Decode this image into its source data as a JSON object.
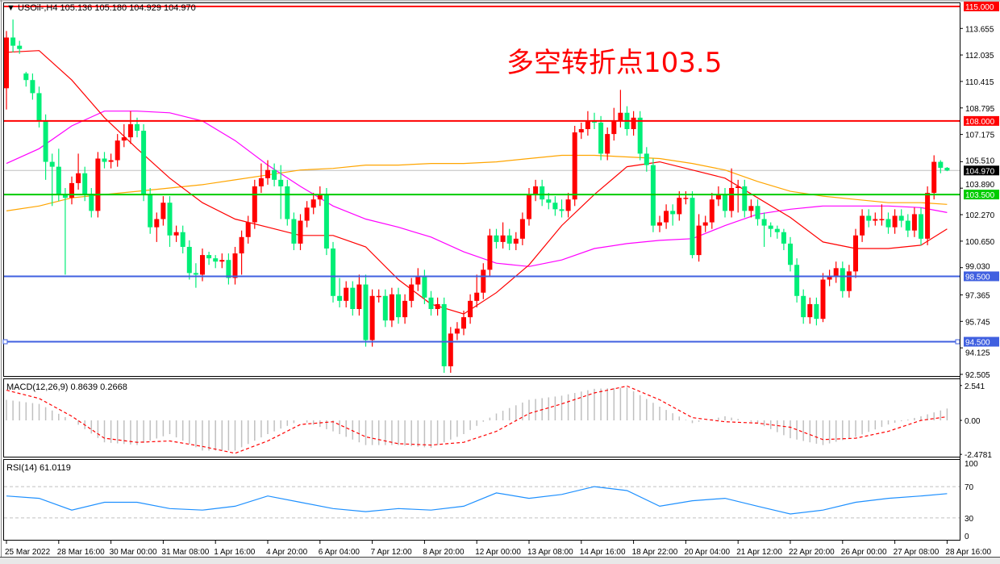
{
  "header": {
    "symbol": "USOil-,H4",
    "open": "105.136",
    "high": "105.180",
    "low": "104.929",
    "close": "104.970"
  },
  "annotation": "多空转折点103.5",
  "colors": {
    "up": "#ff0000",
    "down": "#00ee77",
    "ma_fast": "#ff0000",
    "ma_mid": "#ff00ff",
    "ma_slow": "#ffa500",
    "macd_signal": "#ff0000",
    "macd_hist": "#c0c0c0",
    "rsi": "#1e90ff"
  },
  "levels": [
    {
      "label": "115.000",
      "value": 115.0,
      "color": "#ff0000"
    },
    {
      "label": "108.000",
      "value": 108.0,
      "color": "#ff0000"
    },
    {
      "label": "103.500",
      "value": 103.5,
      "color": "#00cc00"
    },
    {
      "label": "98.500",
      "value": 98.5,
      "color": "#4060e0"
    },
    {
      "label": "94.500",
      "value": 94.5,
      "color": "#4060e0"
    }
  ],
  "current_price": {
    "label": "104.970",
    "value": 104.97
  },
  "chart_data": [
    {
      "type": "candlestick",
      "title": "USOil-,H4",
      "ylim": [
        92.505,
        115.0
      ],
      "y_ticks": [
        "113.655",
        "112.035",
        "110.415",
        "108.795",
        "107.175",
        "105.510",
        "103.890",
        "102.270",
        "100.650",
        "99.030",
        "97.365",
        "95.745",
        "94.125",
        "92.505"
      ],
      "x_tick_labels": [
        "25 Mar 2022",
        "28 Mar 16:00",
        "30 Mar 00:00",
        "31 Mar 08:00",
        "1 Apr 16:00",
        "4 Apr 20:00",
        "6 Apr 04:00",
        "7 Apr 12:00",
        "8 Apr 20:00",
        "12 Apr 00:00",
        "13 Apr 08:00",
        "14 Apr 16:00",
        "18 Apr 22:00",
        "20 Apr 04:00",
        "21 Apr 12:00",
        "22 Apr 20:00",
        "26 Apr 00:00",
        "27 Apr 08:00",
        "28 Apr 16:00"
      ],
      "bars_per_x_tick": 8,
      "open": [
        110.0,
        113.1,
        112.6,
        110.9,
        110.5,
        109.7,
        108.0,
        105.5,
        105.2,
        103.5,
        103.3,
        104.2,
        104.8,
        103.5,
        102.5,
        105.7,
        105.5,
        105.6,
        106.8,
        107.0,
        107.8,
        107.4,
        103.5,
        101.5,
        102.0,
        103.0,
        101.0,
        101.2,
        100.3,
        98.7,
        98.6,
        99.8,
        99.6,
        99.4,
        99.5,
        98.4,
        99.9,
        100.9,
        101.8,
        104.0,
        104.5,
        105.0,
        104.4,
        104.0,
        102.0,
        100.5,
        101.9,
        102.7,
        103.2,
        103.5,
        100.2,
        97.3,
        97.0,
        97.8,
        96.5,
        98.0,
        94.6,
        97.3,
        97.3,
        95.8,
        97.4,
        96.0,
        97.0,
        98.0,
        98.5,
        97.2,
        96.5,
        96.8,
        93.0,
        95.0,
        95.3,
        96.0,
        97.0,
        97.5,
        98.9,
        101.0,
        100.6,
        101.0,
        100.5,
        100.8,
        102.0,
        103.5,
        104.0,
        103.2,
        103.0,
        102.6,
        102.5,
        103.2,
        107.3,
        107.5,
        108.0,
        107.9,
        106.0,
        107.2,
        108.0,
        108.5,
        107.5,
        108.2,
        106.0,
        105.3,
        101.6,
        101.8,
        102.5,
        102.3,
        103.3,
        103.3,
        99.8,
        101.6,
        101.8,
        103.2,
        103.5,
        102.5,
        103.9,
        104.0,
        102.5,
        102.8,
        102.0,
        101.6,
        101.4,
        101.2,
        100.5,
        99.2,
        97.3,
        96.0,
        96.8,
        95.9,
        98.3,
        98.5,
        99.0,
        97.6,
        98.8,
        101.0,
        102.2,
        101.9,
        102.0,
        102.0,
        101.5,
        102.2,
        101.9,
        101.3,
        102.3,
        100.8,
        103.6,
        105.5,
        105.136
      ],
      "high": [
        113.5,
        114.2,
        112.9,
        111.0,
        110.9,
        110.1,
        108.4,
        106.0,
        106.3,
        103.9,
        104.6,
        106.0,
        105.2,
        103.9,
        106.1,
        106.1,
        106.0,
        107.2,
        107.8,
        108.6,
        108.2,
        107.8,
        103.9,
        102.4,
        103.4,
        103.4,
        101.6,
        101.6,
        100.7,
        99.3,
        100.2,
        100.0,
        99.8,
        99.9,
        99.9,
        100.3,
        101.3,
        102.2,
        104.4,
        105.4,
        105.6,
        105.4,
        105.3,
        104.4,
        102.4,
        102.3,
        103.1,
        103.6,
        104.0,
        103.9,
        100.6,
        98.4,
        98.2,
        98.2,
        98.6,
        98.6,
        97.7,
        97.7,
        97.7,
        97.8,
        97.8,
        97.4,
        98.4,
        99.0,
        98.9,
        97.6,
        97.2,
        97.2,
        95.4,
        95.7,
        96.4,
        97.4,
        98.6,
        99.3,
        101.4,
        101.4,
        101.8,
        101.4,
        101.2,
        102.4,
        103.9,
        104.4,
        104.4,
        103.6,
        103.4,
        103.2,
        103.6,
        107.7,
        107.9,
        108.6,
        108.5,
        108.3,
        107.6,
        108.8,
        109.9,
        108.9,
        108.6,
        108.6,
        106.4,
        105.7,
        102.2,
        102.9,
        102.9,
        103.7,
        103.7,
        103.7,
        102.3,
        102.2,
        103.6,
        104.0,
        103.9,
        105.1,
        104.4,
        104.4,
        103.2,
        103.2,
        102.4,
        101.8,
        101.6,
        101.4,
        100.9,
        99.6,
        97.7,
        97.2,
        97.2,
        98.7,
        98.9,
        99.4,
        99.4,
        99.2,
        101.4,
        102.6,
        102.6,
        102.4,
        102.9,
        102.4,
        102.6,
        102.6,
        102.3,
        102.7,
        102.7,
        104.0,
        105.9,
        105.6,
        105.18
      ],
      "low": [
        108.7,
        112.2,
        112.1,
        110.1,
        109.3,
        107.6,
        104.4,
        102.8,
        103.1,
        98.6,
        102.9,
        103.8,
        103.1,
        102.1,
        102.1,
        105.1,
        105.1,
        105.2,
        106.4,
        106.6,
        107.0,
        103.1,
        101.1,
        100.6,
        101.6,
        100.3,
        100.6,
        99.9,
        98.3,
        97.8,
        98.2,
        99.2,
        99.0,
        99.0,
        98.0,
        98.0,
        98.6,
        100.5,
        101.4,
        103.6,
        104.1,
        104.0,
        102.0,
        101.6,
        100.1,
        100.1,
        101.5,
        102.3,
        102.8,
        99.8,
        96.9,
        96.6,
        96.6,
        96.1,
        96.1,
        94.2,
        94.2,
        96.9,
        95.4,
        95.4,
        95.6,
        95.6,
        96.6,
        97.6,
        96.8,
        96.1,
        96.1,
        92.6,
        92.6,
        94.6,
        94.9,
        95.6,
        96.6,
        97.1,
        98.5,
        100.2,
        100.2,
        100.1,
        100.1,
        100.4,
        101.6,
        103.1,
        102.8,
        102.6,
        102.2,
        102.1,
        102.1,
        102.8,
        106.9,
        107.1,
        107.5,
        105.6,
        105.6,
        106.8,
        107.6,
        107.1,
        107.1,
        105.6,
        104.9,
        101.2,
        101.2,
        101.4,
        101.6,
        101.9,
        102.9,
        99.6,
        99.4,
        101.2,
        101.4,
        102.8,
        102.1,
        102.1,
        102.4,
        102.1,
        102.1,
        101.6,
        100.3,
        100.9,
        100.8,
        100.1,
        98.8,
        96.9,
        95.6,
        95.6,
        95.5,
        95.7,
        97.9,
        98.1,
        97.2,
        97.2,
        98.4,
        100.6,
        101.5,
        101.6,
        101.6,
        101.1,
        101.1,
        101.5,
        100.9,
        100.9,
        100.4,
        100.4,
        103.2,
        104.8,
        104.929
      ],
      "close": [
        113.1,
        112.6,
        112.4,
        110.5,
        109.7,
        108.0,
        105.5,
        105.2,
        103.5,
        103.3,
        104.2,
        104.8,
        103.5,
        102.5,
        105.7,
        105.5,
        105.6,
        106.8,
        107.0,
        107.8,
        107.4,
        103.5,
        101.5,
        102.0,
        103.0,
        101.0,
        101.2,
        100.3,
        98.7,
        98.6,
        99.8,
        99.6,
        99.4,
        99.5,
        98.4,
        99.9,
        100.9,
        101.8,
        104.0,
        104.5,
        105.0,
        104.4,
        104.0,
        102.0,
        100.5,
        101.9,
        102.7,
        103.2,
        103.5,
        100.2,
        97.3,
        97.0,
        97.8,
        96.5,
        98.0,
        94.6,
        97.3,
        97.3,
        95.8,
        97.4,
        96.0,
        97.0,
        98.0,
        98.5,
        97.2,
        96.5,
        96.8,
        93.0,
        95.0,
        95.3,
        96.0,
        97.0,
        97.5,
        98.9,
        101.0,
        100.6,
        101.0,
        100.5,
        100.8,
        102.0,
        103.5,
        104.0,
        103.2,
        103.0,
        102.6,
        102.5,
        103.2,
        107.3,
        107.5,
        108.0,
        107.9,
        106.0,
        107.2,
        108.0,
        108.5,
        107.5,
        108.2,
        106.0,
        105.3,
        101.6,
        101.8,
        102.5,
        102.3,
        103.3,
        103.3,
        99.8,
        101.6,
        101.8,
        103.2,
        103.5,
        102.5,
        103.9,
        104.0,
        102.5,
        102.8,
        102.0,
        101.6,
        101.4,
        101.2,
        100.5,
        99.2,
        97.3,
        96.0,
        96.8,
        95.9,
        98.3,
        98.5,
        99.0,
        97.6,
        98.8,
        101.0,
        102.2,
        101.9,
        102.0,
        102.0,
        101.5,
        102.2,
        101.9,
        101.3,
        102.3,
        100.8,
        103.6,
        105.5,
        105.136,
        104.97
      ],
      "overlay_sample_bars": [
        0,
        5,
        10,
        15,
        20,
        25,
        30,
        35,
        40,
        45,
        50,
        55,
        60,
        65,
        70,
        75,
        80,
        85,
        90,
        95,
        100,
        105,
        110,
        115,
        120,
        125,
        130,
        135,
        140,
        144
      ],
      "ma_fast": [
        112.2,
        112.3,
        110.5,
        108.2,
        106.3,
        104.5,
        103.0,
        102.0,
        101.5,
        101.0,
        101.0,
        100.3,
        98.3,
        96.8,
        96.2,
        97.5,
        99.2,
        101.6,
        103.5,
        105.2,
        105.5,
        105.0,
        104.5,
        103.3,
        102.1,
        100.6,
        100.2,
        100.2,
        100.4,
        101.4
      ],
      "ma_mid": [
        105.4,
        106.3,
        107.7,
        108.6,
        108.6,
        108.5,
        108.0,
        106.8,
        105.3,
        104.0,
        102.8,
        102.0,
        101.5,
        100.9,
        100.0,
        99.3,
        99.1,
        99.5,
        100.2,
        100.5,
        100.7,
        100.8,
        101.6,
        102.3,
        102.6,
        102.8,
        102.8,
        102.8,
        102.7,
        102.4
      ],
      "ma_slow": [
        102.5,
        102.8,
        103.3,
        103.5,
        103.7,
        103.9,
        104.1,
        104.4,
        104.7,
        105.0,
        105.1,
        105.3,
        105.3,
        105.4,
        105.4,
        105.5,
        105.7,
        105.9,
        105.9,
        105.8,
        105.7,
        105.4,
        105.0,
        104.3,
        103.7,
        103.4,
        103.2,
        103.0,
        103.0,
        102.9
      ]
    },
    {
      "type": "bar+line",
      "title": "MACD(12,26,9) 0.8639 0.2668",
      "ylim": [
        -2.4781,
        2.541
      ],
      "y_ticks": [
        "2.541",
        "0.00",
        "-2.4781"
      ],
      "histogram": [
        1.5,
        1.2,
        0.0,
        -1.6,
        -1.8,
        -1.0,
        -2.2,
        -2.2,
        -1.0,
        0.0,
        -0.8,
        -1.8,
        -1.8,
        -2.0,
        -1.0,
        0.5,
        1.5,
        1.8,
        2.3,
        2.4,
        1.0,
        -0.2,
        0.3,
        -0.2,
        -1.3,
        -1.8,
        -1.2,
        -0.3,
        0.3,
        0.8639
      ],
      "signal": [
        2.2,
        1.6,
        0.3,
        -1.3,
        -1.6,
        -1.5,
        -1.9,
        -2.4,
        -1.5,
        -0.3,
        -0.1,
        -1.2,
        -1.7,
        -1.8,
        -1.6,
        -0.8,
        0.5,
        1.2,
        2.0,
        2.5,
        1.5,
        0.2,
        -0.1,
        -0.2,
        -0.5,
        -1.4,
        -1.3,
        -0.8,
        0.0,
        0.2668
      ]
    },
    {
      "type": "line",
      "title": "RSI(14) 61.0119",
      "ylim": [
        0,
        100
      ],
      "y_ticks": [
        "100",
        "70",
        "30",
        "0"
      ],
      "levels": [
        70,
        30
      ],
      "values": [
        58,
        55,
        40,
        50,
        50,
        42,
        40,
        45,
        58,
        50,
        42,
        38,
        42,
        40,
        45,
        62,
        55,
        60,
        70,
        65,
        45,
        52,
        55,
        45,
        35,
        40,
        50,
        55,
        58,
        61.0119
      ]
    }
  ]
}
